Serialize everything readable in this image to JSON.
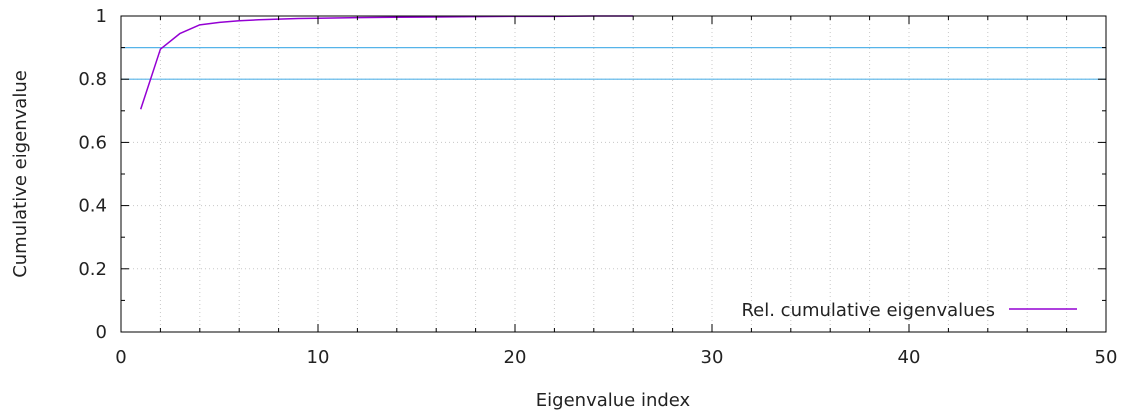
{
  "chart_data": {
    "type": "line",
    "xlabel": "Eigenvalue index",
    "ylabel": "Cumulative eigenvalue",
    "xlim": [
      0,
      50
    ],
    "ylim": [
      0,
      1
    ],
    "x_ticks": [
      "0",
      "10",
      "20",
      "30",
      "40",
      "50"
    ],
    "y_ticks": [
      "0",
      "0.2",
      "0.4",
      "0.6",
      "0.8",
      "1"
    ],
    "grid": true,
    "legend_position": "bottom-right",
    "series": [
      {
        "name": "Rel. cumulative eigenvalues",
        "color": "#9400d3",
        "x": [
          1,
          2,
          3,
          4,
          5,
          6,
          7,
          8,
          9,
          10,
          12,
          14,
          16,
          18,
          20,
          22,
          24,
          26
        ],
        "y": [
          0.705,
          0.895,
          0.945,
          0.972,
          0.98,
          0.985,
          0.988,
          0.99,
          0.992,
          0.993,
          0.995,
          0.996,
          0.997,
          0.998,
          0.999,
          0.999,
          1.0,
          1.0
        ]
      }
    ],
    "reference_lines": [
      {
        "y": 0.9,
        "color": "#56b4e9"
      },
      {
        "y": 0.8,
        "color": "#56b4e9"
      }
    ]
  }
}
